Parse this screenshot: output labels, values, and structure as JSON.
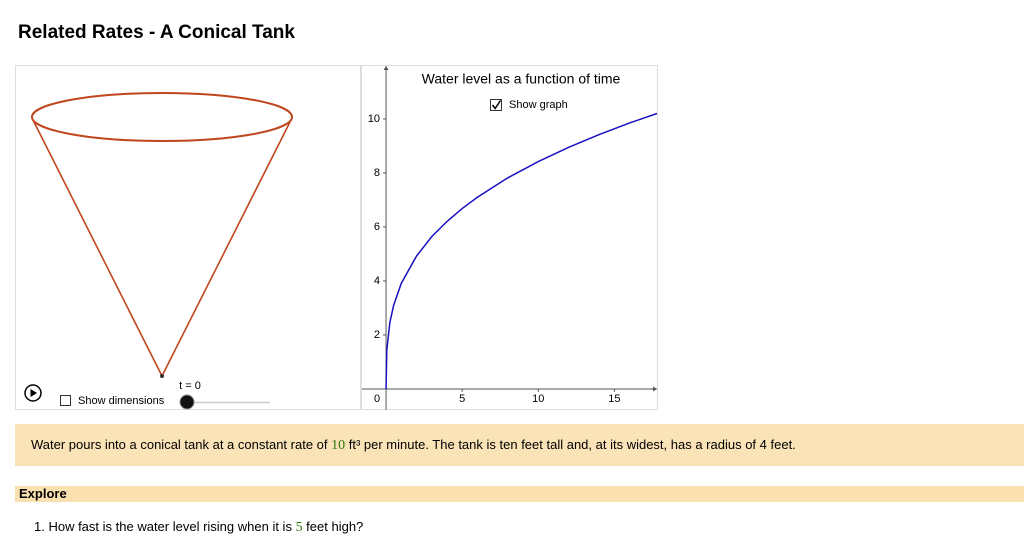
{
  "header": {
    "title": "Related Rates - A Conical Tank"
  },
  "applet": {
    "show_dimensions": "Show dimensions",
    "show_dimensions_checked": false,
    "slider_label": "t = 0",
    "show_graph": "Show graph",
    "show_graph_checked": true
  },
  "chart_data": {
    "type": "line",
    "title": "Water level as a function of time",
    "x": [
      0,
      0.05,
      0.25,
      0.5,
      1,
      2,
      3,
      4,
      5,
      6,
      8,
      10,
      12,
      14,
      16,
      17.8
    ],
    "values": [
      0,
      1.44,
      2.46,
      3.1,
      3.91,
      4.92,
      5.64,
      6.2,
      6.68,
      7.1,
      7.82,
      8.42,
      8.95,
      9.42,
      9.85,
      10.2
    ],
    "color": "#1a10c0",
    "xlim": [
      -1.58,
      17.8
    ],
    "ylim": [
      -0.78,
      11.96
    ],
    "xticks": [
      0,
      5,
      10,
      15
    ],
    "yticks": [
      2,
      4,
      6,
      8,
      10
    ]
  },
  "intro": {
    "before": "Water pours into a conical tank at a constant rate of ",
    "rate": 10,
    "after_rate": " ft³ per minute. The tank is ten feet tall and, at its widest, has a radius of 4 feet."
  },
  "explore": {
    "heading": "Explore",
    "questions": [
      {
        "number": "1.",
        "before": " How fast is the water level rising when it is ",
        "height": 5,
        "after": " feet high?"
      }
    ]
  }
}
